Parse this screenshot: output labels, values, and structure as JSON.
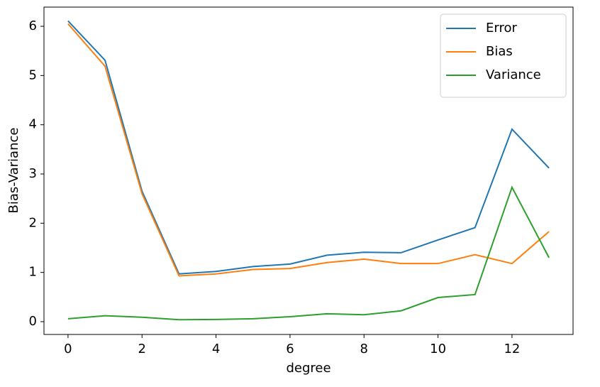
{
  "chart_data": {
    "type": "line",
    "x_label": "degree",
    "y_label": "Bias-Variance",
    "x": [
      0,
      1,
      2,
      3,
      4,
      5,
      6,
      7,
      8,
      9,
      10,
      11,
      12,
      13
    ],
    "series": [
      {
        "name": "Error",
        "color": "#1f77b4",
        "values": [
          6.11,
          5.31,
          2.65,
          0.97,
          1.02,
          1.12,
          1.17,
          1.35,
          1.41,
          1.4,
          1.66,
          1.91,
          3.91,
          3.12
        ]
      },
      {
        "name": "Bias",
        "color": "#ff7f0e",
        "values": [
          6.05,
          5.19,
          2.6,
          0.93,
          0.97,
          1.06,
          1.08,
          1.2,
          1.27,
          1.18,
          1.18,
          1.36,
          1.18,
          1.83
        ]
      },
      {
        "name": "Variance",
        "color": "#2ca02c",
        "values": [
          0.06,
          0.12,
          0.09,
          0.04,
          0.045,
          0.06,
          0.1,
          0.16,
          0.14,
          0.22,
          0.49,
          0.55,
          2.73,
          1.3
        ]
      }
    ],
    "xlim": [
      -0.65,
      13.65
    ],
    "xticks": [
      0,
      2,
      4,
      6,
      8,
      10,
      12
    ],
    "ylim": [
      -0.26,
      6.39
    ],
    "yticks": [
      0,
      1,
      2,
      3,
      4,
      5,
      6
    ],
    "legend": "upper right",
    "grid": false
  }
}
